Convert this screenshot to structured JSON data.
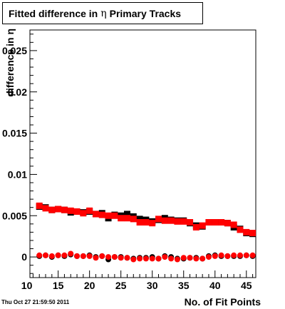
{
  "header": {
    "title_prefix": "Fitted difference in",
    "title_symbol": "η",
    "title_suffix": "Primary Tracks"
  },
  "footer": {
    "timestamp": "Thu Oct 27 21:59:50 2011"
  },
  "chart_data": {
    "type": "scatter",
    "title": "Fitted difference in η Primary Tracks",
    "xlabel": "No. of Fit Points",
    "ylabel": "difference in η",
    "xlim": [
      10.5,
      46.5
    ],
    "ylim": [
      -0.0025,
      0.0275
    ],
    "x_ticks": [
      10,
      15,
      20,
      25,
      30,
      35,
      40,
      45
    ],
    "y_ticks": [
      0,
      0.005,
      0.01,
      0.015,
      0.02,
      0.025
    ],
    "y_tick_labels": [
      "0",
      "0.005",
      "0.01",
      "0.015",
      "0.02",
      "0.025"
    ],
    "grid": false,
    "x": [
      12,
      13,
      14,
      15,
      16,
      17,
      18,
      19,
      20,
      21,
      22,
      23,
      24,
      25,
      26,
      27,
      28,
      29,
      30,
      31,
      32,
      33,
      34,
      35,
      36,
      37,
      38,
      39,
      40,
      41,
      42,
      43,
      44,
      45,
      46
    ],
    "series": [
      {
        "marker": "square",
        "color": "#000000",
        "values": [
          0.0061,
          0.006,
          0.0057,
          0.0058,
          0.0057,
          0.0054,
          0.0055,
          0.0054,
          0.0055,
          0.0052,
          0.0053,
          0.0047,
          0.0051,
          0.005,
          0.0052,
          0.0049,
          0.0046,
          0.0045,
          0.0043,
          0.0045,
          0.0047,
          0.0045,
          0.0044,
          0.0044,
          0.0041,
          0.0038,
          0.0037,
          0.0042,
          0.0042,
          0.0042,
          0.0041,
          0.0036,
          0.0034,
          0.0029,
          0.0028
        ]
      },
      {
        "marker": "square",
        "color": "#ff0000",
        "values": [
          0.0062,
          0.0059,
          0.0057,
          0.0058,
          0.0057,
          0.0056,
          0.0055,
          0.0053,
          0.0056,
          0.0052,
          0.0051,
          0.005,
          0.005,
          0.0047,
          0.0047,
          0.0046,
          0.0042,
          0.0042,
          0.0041,
          0.0046,
          0.0044,
          0.0044,
          0.0043,
          0.0043,
          0.0042,
          0.0036,
          0.0038,
          0.0042,
          0.0042,
          0.0042,
          0.0041,
          0.0039,
          0.0033,
          0.003,
          0.0029
        ]
      },
      {
        "marker": "circle",
        "color": "#000000",
        "values": [
          0.0001,
          0.0002,
          0.0,
          0.0002,
          0.0001,
          0.0003,
          0.0001,
          0.0001,
          0.0002,
          0.0,
          0.0001,
          -0.0003,
          0.0,
          0.0,
          -0.0001,
          -0.0002,
          -0.0001,
          -0.0001,
          0.0,
          -0.0002,
          0.0001,
          0.0,
          -0.0002,
          -0.0002,
          -0.0001,
          -0.0001,
          -0.0002,
          0.0001,
          0.0002,
          0.0001,
          0.0001,
          0.0001,
          0.0001,
          0.0002,
          0.0001
        ]
      },
      {
        "marker": "circle",
        "color": "#ff0000",
        "values": [
          0.0002,
          0.0002,
          0.0001,
          0.0002,
          0.0002,
          0.0004,
          0.0001,
          0.0001,
          0.0001,
          -0.0001,
          0.0001,
          0.0,
          0.0,
          -0.0001,
          -0.0001,
          -0.0003,
          -0.0002,
          -0.0002,
          -0.0002,
          -0.0002,
          0.0,
          -0.0002,
          -0.0003,
          -0.0001,
          -0.0001,
          -0.0002,
          -0.0002,
          0.0,
          0.0001,
          0.0002,
          0.0001,
          0.0002,
          0.0002,
          0.0002,
          0.0002
        ]
      }
    ]
  }
}
